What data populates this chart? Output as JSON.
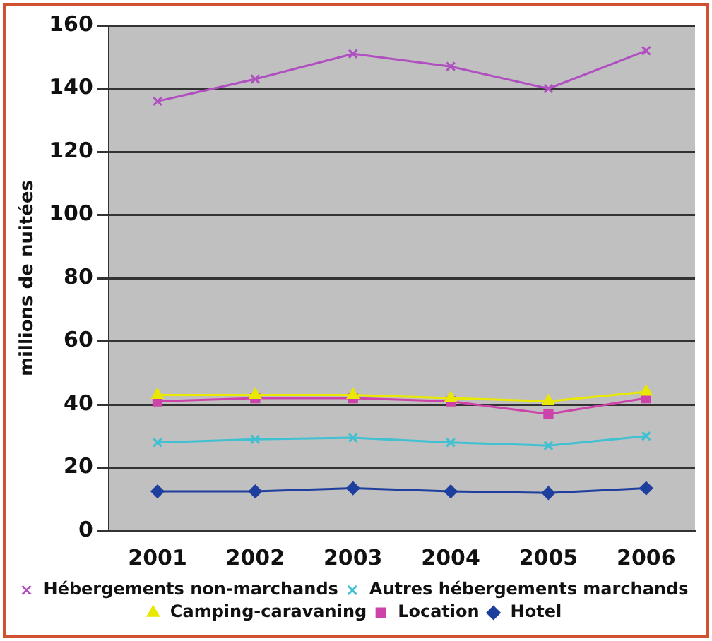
{
  "chart_data": {
    "type": "line",
    "ylabel": "millions de nuitées",
    "categories": [
      "2001",
      "2002",
      "2003",
      "2004",
      "2005",
      "2006"
    ],
    "series": [
      {
        "name": "Hotel",
        "color": "#1f3f9f",
        "marker": "diamond",
        "values": [
          12.5,
          12.5,
          13.5,
          12.5,
          12,
          13.5
        ]
      },
      {
        "name": "Location",
        "color": "#cc44aa",
        "marker": "square",
        "values": [
          41,
          42,
          42,
          41,
          37,
          42
        ]
      },
      {
        "name": "Camping-caravaning",
        "color": "#e8e800",
        "marker": "triangle",
        "values": [
          43,
          43,
          43,
          42,
          41,
          44
        ]
      },
      {
        "name": "Autres hébergements marchands",
        "color": "#40c0d0",
        "marker": "cross",
        "values": [
          28,
          29,
          29.5,
          28,
          27,
          30
        ]
      },
      {
        "name": "Hébergements non-marchands",
        "color": "#b050c0",
        "marker": "cross",
        "values": [
          136,
          143,
          151,
          147,
          140,
          152
        ]
      }
    ],
    "ylim": [
      0,
      160
    ],
    "yticks": [
      0,
      20,
      40,
      60,
      80,
      100,
      120,
      140,
      160
    ],
    "grid": "y",
    "legend": "bottom"
  }
}
